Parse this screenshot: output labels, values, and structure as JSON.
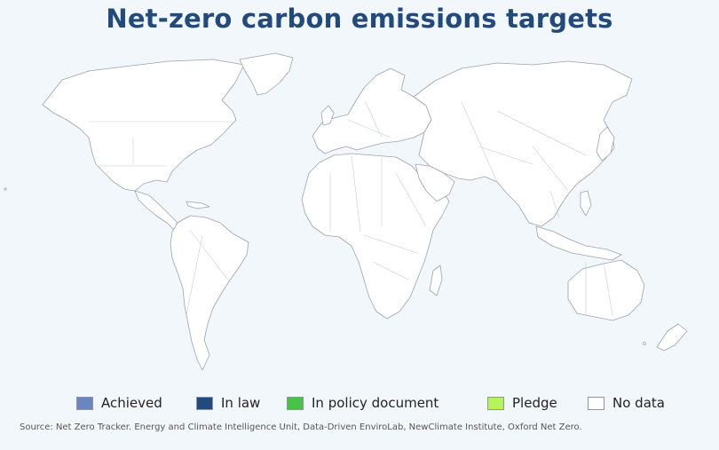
{
  "title": "Net-zero carbon emissions targets",
  "legend": [
    {
      "label": "Achieved",
      "color": "#6a86bd"
    },
    {
      "label": "In law",
      "color": "#234a7c"
    },
    {
      "label": "In policy document",
      "color": "#4ac24a"
    },
    {
      "label": "Pledge",
      "color": "#b5f45a"
    },
    {
      "label": "No data",
      "color": "#ffffff"
    }
  ],
  "source": "Source: Net Zero Tracker. Energy and Climate Intelligence Unit, Data-Driven EnviroLab, NewClimate Institute, Oxford Net Zero."
}
